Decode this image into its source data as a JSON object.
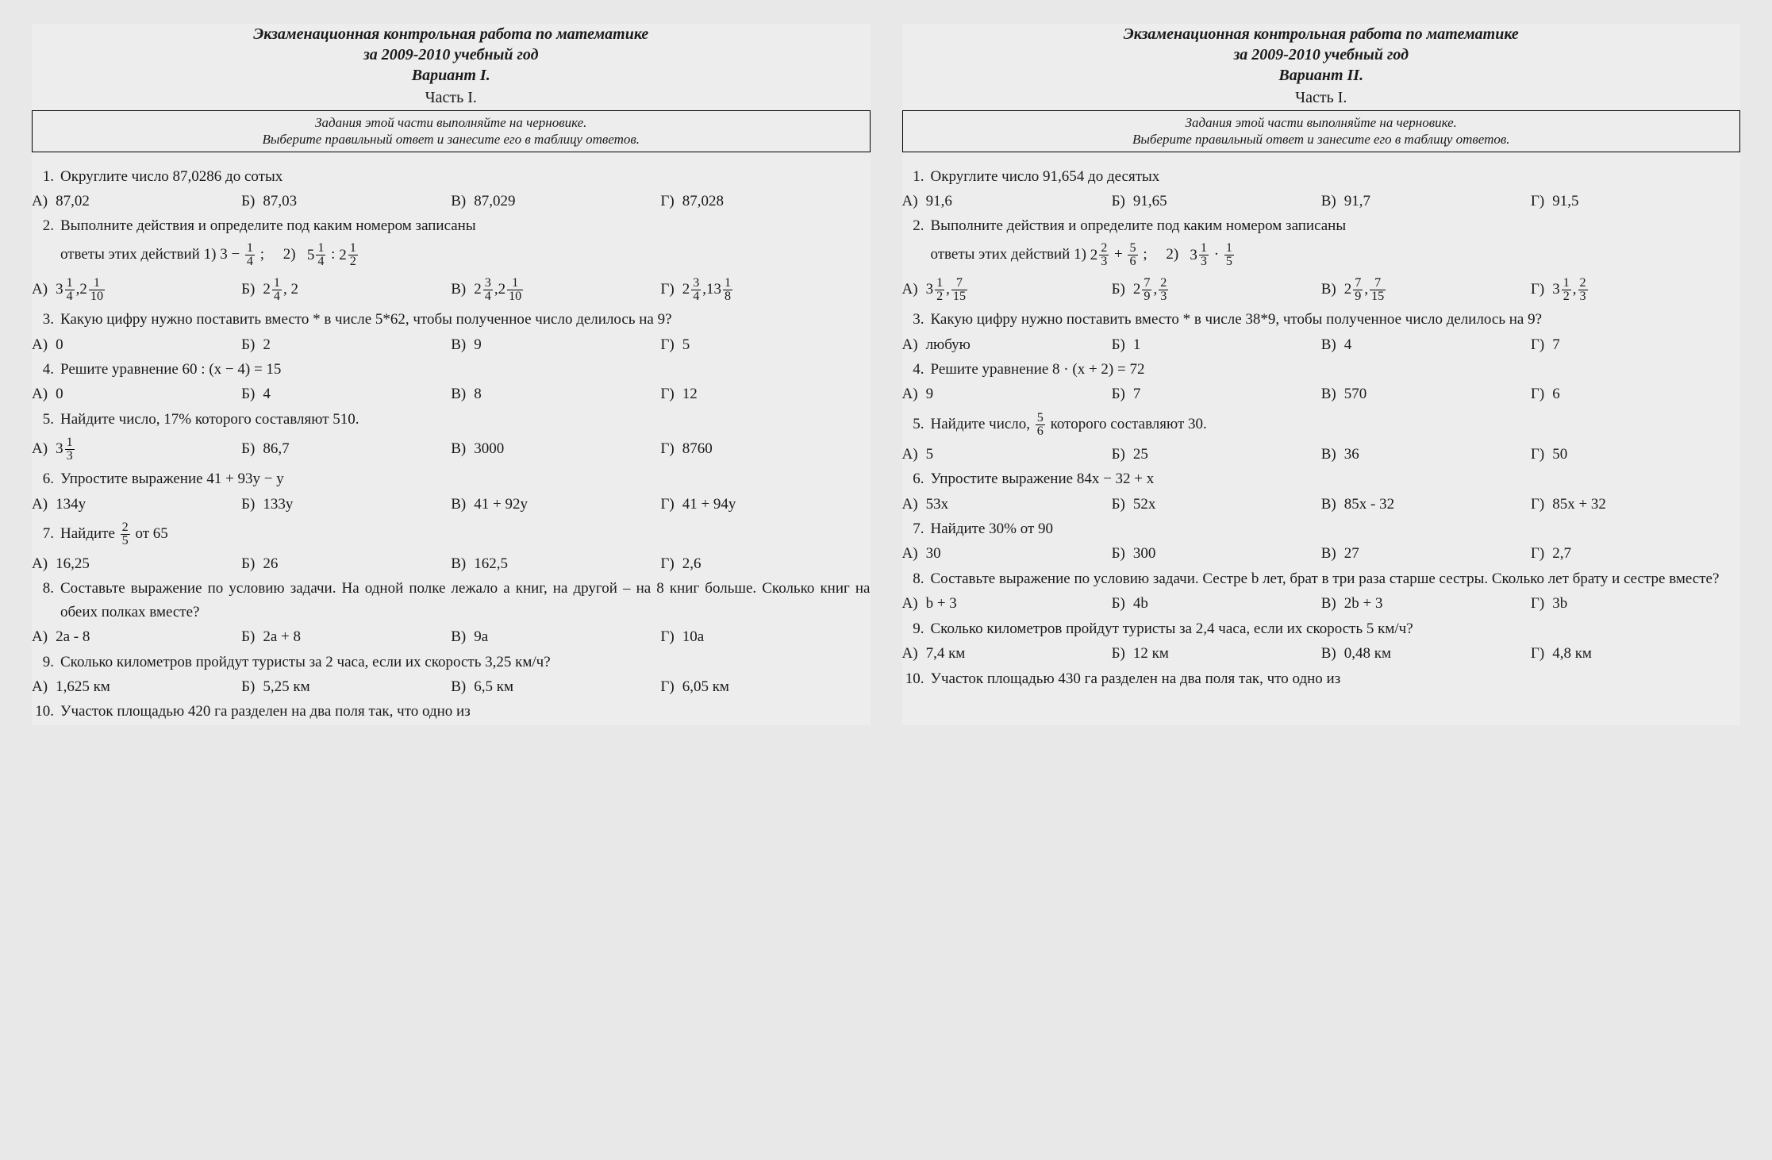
{
  "variant1": {
    "title_line1": "Экзаменационная контрольная работа по математике",
    "title_line2": "за 2009-2010 учебный год",
    "title_line3": "Вариант I.",
    "part": "Часть I.",
    "instr_line1": "Задания этой части выполняйте на черновике.",
    "instr_line2": "Выберите правильный ответ и занесите его в таблицу ответов.",
    "q1": {
      "num": "1.",
      "text": "Округлите число 87,0286 до сотых",
      "a": "87,02",
      "b": "87,03",
      "c": "87,029",
      "d": "87,028"
    },
    "q2": {
      "num": "2.",
      "text_pre": "Выполните действия и определите под каким номером записаны",
      "text_line2a": "ответы этих действий   1)",
      "expr1_whole": "3",
      "expr1_minus": " − ",
      "expr1_fn": "1",
      "expr1_fd": "4",
      "expr1_sc": " ;",
      "two_label": "2)",
      "expr2_a_w": "5",
      "expr2_a_n": "1",
      "expr2_a_d": "4",
      "div": " : ",
      "expr2_b_w": "2",
      "expr2_b_n": "1",
      "expr2_b_d": "2",
      "a_w1": "3",
      "a_n1": "1",
      "a_d1": "4",
      "a_sep": ",  ",
      "a_w2": "2",
      "a_n2": "1",
      "a_d2": "10",
      "b_w1": "2",
      "b_n1": "1",
      "b_d1": "4",
      "b_after": ",  2",
      "c_w1": "2",
      "c_n1": "3",
      "c_d1": "4",
      "c_sep": ",  ",
      "c_w2": "2",
      "c_n2": "1",
      "c_d2": "10",
      "d_w1": "2",
      "d_n1": "3",
      "d_d1": "4",
      "d_sep": ",  ",
      "d_w2": "13",
      "d_n2": "1",
      "d_d2": "8"
    },
    "q3": {
      "num": "3.",
      "text": "Какую цифру нужно поставить вместо * в числе 5*62, чтобы полученное число делилось на 9?",
      "a": "0",
      "b": "2",
      "c": "9",
      "d": "5"
    },
    "q4": {
      "num": "4.",
      "text": "Решите уравнение  60 : (x − 4) = 15",
      "a": "0",
      "b": "4",
      "c": "8",
      "d": "12"
    },
    "q5": {
      "num": "5.",
      "text": "Найдите число, 17% которого составляют 510.",
      "a_w": "3",
      "a_n": "1",
      "a_d": "3",
      "b": "86,7",
      "c": "3000",
      "d": "8760"
    },
    "q6": {
      "num": "6.",
      "text": "Упростите выражение 41 + 93y − y",
      "a": "134y",
      "b": "133y",
      "c": "41 + 92y",
      "d": "41 + 94y"
    },
    "q7": {
      "num": "7.",
      "text_pre": "Найдите  ",
      "fn": "2",
      "fd": "5",
      "text_post": "  от 65",
      "a": "16,25",
      "b": "26",
      "c": "162,5",
      "d": "2,6"
    },
    "q8": {
      "num": "8.",
      "text": "Составьте выражение по условию задачи. На одной полке лежало a книг, на другой – на 8 книг больше. Сколько книг на обеих полках вместе?",
      "a": "2a - 8",
      "b": "2a + 8",
      "c": "9a",
      "d": "10a"
    },
    "q9": {
      "num": "9.",
      "text": "Сколько километров пройдут туристы за 2 часа, если их скорость 3,25 км/ч?",
      "a": "1,625 км",
      "b": "5,25 км",
      "c": "6,5 км",
      "d": "6,05 км"
    },
    "q10": {
      "num": "10.",
      "text": "Участок площадью 420 га разделен на два поля так, что одно из"
    }
  },
  "variant2": {
    "title_line1": "Экзаменационная контрольная работа по математике",
    "title_line2": "за 2009-2010 учебный год",
    "title_line3": "Вариант II.",
    "part": "Часть I.",
    "instr_line1": "Задания этой части выполняйте на черновике.",
    "instr_line2": "Выберите правильный ответ и занесите его в таблицу ответов.",
    "q1": {
      "num": "1.",
      "text": "Округлите число 91,654 до десятых",
      "a": "91,6",
      "b": "91,65",
      "c": "91,7",
      "d": "91,5"
    },
    "q2": {
      "num": "2.",
      "text_pre": "Выполните действия и определите под каким номером записаны",
      "text_line2a": "ответы этих действий   1)",
      "e1_aw": "2",
      "e1_an": "2",
      "e1_ad": "3",
      "plus": " + ",
      "e1_bn": "5",
      "e1_bd": "6",
      "sc": " ;",
      "two_label": "2)",
      "e2_aw": "3",
      "e2_an": "1",
      "e2_ad": "3",
      "mul": " · ",
      "e2_bn": "1",
      "e2_bd": "5",
      "a_w1": "3",
      "a_n1": "1",
      "a_d1": "2",
      "a_sep": ",  ",
      "a_n2": "7",
      "a_d2": "15",
      "b_w1": "2",
      "b_n1": "7",
      "b_d1": "9",
      "b_sep": ",  ",
      "b_n2": "2",
      "b_d2": "3",
      "c_w1": "2",
      "c_n1": "7",
      "c_d1": "9",
      "c_sep": ",  ",
      "c_n2": "7",
      "c_d2": "15",
      "d_w1": "3",
      "d_n1": "1",
      "d_d1": "2",
      "d_sep": ",  ",
      "d_n2": "2",
      "d_d2": "3"
    },
    "q3": {
      "num": "3.",
      "text": "Какую цифру нужно поставить вместо * в числе 38*9, чтобы полученное число делилось на 9?",
      "a": "любую",
      "b": "1",
      "c": "4",
      "d": "7"
    },
    "q4": {
      "num": "4.",
      "text": "Решите уравнение  8 · (x + 2) = 72",
      "a": "9",
      "b": "7",
      "c": "570",
      "d": "6"
    },
    "q5": {
      "num": "5.",
      "text_pre": "Найдите число, ",
      "fn": "5",
      "fd": "6",
      "text_post": " которого составляют 30.",
      "a": "5",
      "b": "25",
      "c": "36",
      "d": "50"
    },
    "q6": {
      "num": "6.",
      "text": "Упростите выражение 84x − 32 + x",
      "a": "53x",
      "b": "52x",
      "c": "85x - 32",
      "d": "85x + 32"
    },
    "q7": {
      "num": "7.",
      "text": "Найдите  30% от 90",
      "a": "30",
      "b": "300",
      "c": "27",
      "d": "2,7"
    },
    "q8": {
      "num": "8.",
      "text": "Составьте выражение по условию задачи. Сестре b лет, брат в три раза старше сестры. Сколько лет брату и сестре вместе?",
      "a": "b + 3",
      "b": "4b",
      "c": "2b + 3",
      "d": "3b"
    },
    "q9": {
      "num": "9.",
      "text": "Сколько километров пройдут туристы за 2,4 часа, если их скорость 5 км/ч?",
      "a": "7,4 км",
      "b": "12 км",
      "c": "0,48 км",
      "d": "4,8 км"
    },
    "q10": {
      "num": "10.",
      "text": "Участок площадью 430 га разделен на два поля так, что одно из"
    }
  },
  "labels": {
    "A": "А)",
    "B": "Б)",
    "C": "В)",
    "D": "Г)"
  }
}
